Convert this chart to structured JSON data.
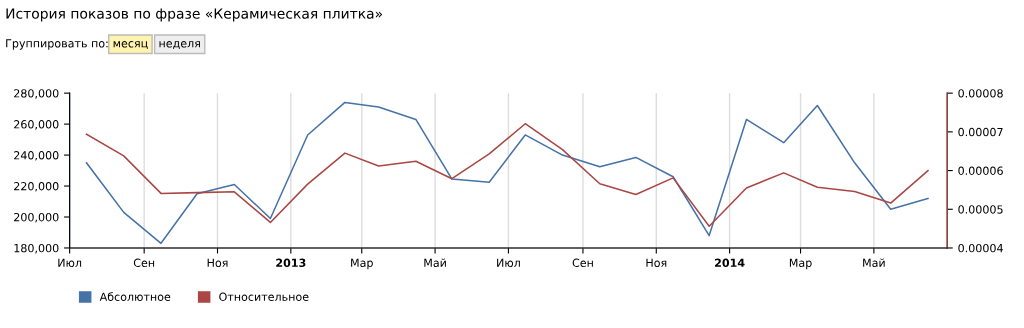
{
  "chart_data": {
    "type": "line",
    "title": "История показов по фразе «Керамическая плитка»",
    "annotations": [
      "Группировать по:",
      "месяц",
      "неделя"
    ],
    "x": [
      "2012-07-15",
      "2012-08-15",
      "2012-09-15",
      "2012-10-15",
      "2012-11-15",
      "2012-12-15",
      "2013-01-15",
      "2013-02-15",
      "2013-03-15",
      "2013-04-15",
      "2013-05-15",
      "2013-06-15",
      "2013-07-15",
      "2013-08-15",
      "2013-09-15",
      "2013-10-15",
      "2013-11-15",
      "2013-12-15",
      "2014-01-15",
      "2014-02-15",
      "2014-03-15",
      "2014-04-15",
      "2014-05-15",
      "2014-06-15"
    ],
    "series": [
      {
        "name": "Абсолютное",
        "color": "#4572a7",
        "values": [
          235000,
          203000,
          183000,
          215000,
          221000,
          199000,
          253000,
          274000,
          271000,
          263000,
          224500,
          222500,
          253000,
          240000,
          232500,
          238500,
          226000,
          188000,
          263000,
          248000,
          272000,
          235000,
          205000,
          212000
        ]
      },
      {
        "name": "Относительное",
        "color": "#aa4643",
        "axis": "y2",
        "values": [
          6.94e-05,
          6.38e-05,
          5.41e-05,
          5.43e-05,
          5.45e-05,
          4.66e-05,
          5.65e-05,
          6.45e-05,
          6.12e-05,
          6.24e-05,
          5.79e-05,
          6.43e-05,
          7.21e-05,
          6.54e-05,
          5.66e-05,
          5.38e-05,
          5.81e-05,
          4.56e-05,
          5.55e-05,
          5.94e-05,
          5.57e-05,
          5.46e-05,
          5.16e-05,
          6e-05
        ]
      }
    ],
    "xlim": [
      "2012-07-01",
      "2014-07-01"
    ],
    "xticks": [
      {
        "value": "2012-07-01",
        "label": "Июл"
      },
      {
        "value": "2012-09-01",
        "label": "Сен"
      },
      {
        "value": "2012-11-01",
        "label": "Ноя"
      },
      {
        "value": "2013-01-01",
        "label": "2013"
      },
      {
        "value": "2013-03-01",
        "label": "Мар"
      },
      {
        "value": "2013-05-01",
        "label": "Май"
      },
      {
        "value": "2013-07-01",
        "label": "Июл"
      },
      {
        "value": "2013-09-01",
        "label": "Сен"
      },
      {
        "value": "2013-11-01",
        "label": "Ноя"
      },
      {
        "value": "2014-01-01",
        "label": "2014"
      },
      {
        "value": "2014-03-01",
        "label": "Мар"
      },
      {
        "value": "2014-05-01",
        "label": "Май"
      }
    ],
    "ylim": [
      180000,
      280000
    ],
    "yticks": [
      {
        "value": 180000,
        "label": "180,000"
      },
      {
        "value": 200000,
        "label": "200,000"
      },
      {
        "value": 220000,
        "label": "220,000"
      },
      {
        "value": 240000,
        "label": "240,000"
      },
      {
        "value": 260000,
        "label": "260,000"
      },
      {
        "value": 280000,
        "label": "280,000"
      }
    ],
    "y2lim": [
      4e-05,
      8e-05
    ],
    "y2ticks": [
      {
        "value": 4e-05,
        "label": "0.00004"
      },
      {
        "value": 5e-05,
        "label": "0.00005"
      },
      {
        "value": 6e-05,
        "label": "0.00006"
      },
      {
        "value": 7e-05,
        "label": "0.00007"
      },
      {
        "value": 8e-05,
        "label": "0.00008"
      }
    ],
    "grid": "x",
    "legend": "bottom left",
    "marker": "none",
    "line_style": "solid"
  }
}
